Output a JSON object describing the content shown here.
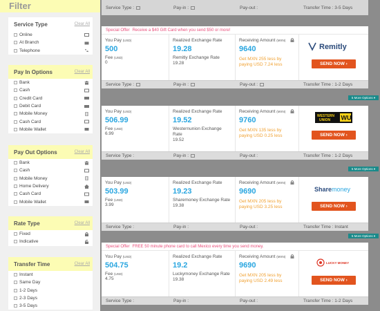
{
  "sidebar": {
    "title": "Filter",
    "clear": "Clear All",
    "sections": [
      {
        "title": "Service Type",
        "items": [
          "Online",
          "At Branch",
          "Telephone"
        ]
      },
      {
        "title": "Pay In Options",
        "items": [
          "Bank",
          "Cash",
          "Credit Card",
          "Debit Card",
          "Mobile Money",
          "Cash Card",
          "Mobile Wallet"
        ]
      },
      {
        "title": "Pay Out Options",
        "items": [
          "Bank",
          "Cash",
          "Mobile Money",
          "Home Delivery",
          "Cash Card",
          "Mobile Wallet"
        ]
      },
      {
        "title": "Rate Type",
        "items": [
          "Fixed",
          "Indicative"
        ]
      },
      {
        "title": "Transfer Time",
        "items": [
          "Instant",
          "Same Day",
          "1-2 Days",
          "2-3 Days",
          "3-5 Days"
        ]
      }
    ]
  },
  "labels": {
    "you_pay": "You Pay",
    "you_pay_unit": "(USD)",
    "fee": "Fee",
    "fee_unit": "(USD)",
    "realized": "Realized Exchange Rate",
    "receiving": "Receiving Amount",
    "receiving_unit": "(MXN)",
    "service_type": "Service Type :",
    "pay_in": "Pay-in :",
    "pay_out": "Pay-out :",
    "send_now": "SEND NOW ›",
    "more_options": "5 More Options ▾"
  },
  "top_card": {
    "service_type": "Service Type :",
    "pay_in": "Pay-in :",
    "pay_out": "Pay-out :",
    "transfer_time": "Transfer Time : 3-5 Days"
  },
  "cards": [
    {
      "special_label": "Special Offer",
      "special_text": "Receive a $40 Gift Card when you send $50 or more!",
      "you_pay": "500",
      "fee": "0",
      "rate": "19.28",
      "rate_label": "Remitly Exchange Rate",
      "rate_value": "19.28",
      "receive": "9640",
      "receive_note": "Get MXN 255 less by paying USD 7.24 less",
      "brand": "Remitly",
      "transfer_time": "Transfer Time : 1-2 Days"
    },
    {
      "special_label": "",
      "special_text": "",
      "you_pay": "506.99",
      "fee": "6.99",
      "rate": "19.52",
      "rate_label": "Westernunion Exchange Rate",
      "rate_value": "19.52",
      "receive": "9760",
      "receive_note": "Get MXN 135 less by paying USD 0.25 less",
      "brand": "WESTERN UNION WU",
      "transfer_time": "Transfer Time : 1-2 Days"
    },
    {
      "special_label": "",
      "special_text": "",
      "you_pay": "503.99",
      "fee": "3.99",
      "rate": "19.23",
      "rate_label": "Sharemoney Exchange Rate",
      "rate_value": "19.38",
      "receive": "9690",
      "receive_note": "Get MXN 205 less by paying USD 3.25 less",
      "brand": "Sharemoney",
      "transfer_time": "Transfer Time : Instant"
    },
    {
      "special_label": "Special Offer",
      "special_text": "FREE 50 minute phone card to call Mexico every time you send money.",
      "you_pay": "504.75",
      "fee": "4.75",
      "rate": "19.2",
      "rate_label": "Luckymoney Exchange Rate",
      "rate_value": "19.38",
      "receive": "9690",
      "receive_note": "Get MXN 205 less by paying USD 2.49 less",
      "brand": "LUCKY MONEY",
      "transfer_time": "Transfer Time : 1-2 Days"
    }
  ],
  "colors": {
    "accent": "#2aa6e0",
    "send": "#e2541e",
    "special": "#e84d7a",
    "note": "#f0a030",
    "highlight": "#fcfcb4"
  }
}
